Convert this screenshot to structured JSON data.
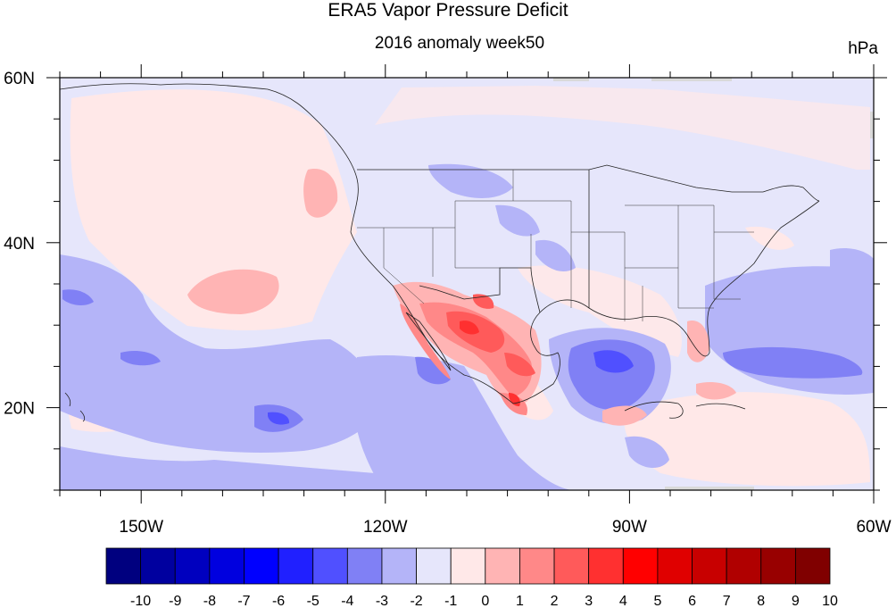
{
  "title": "ERA5 Vapor Pressure Deficit",
  "subtitle": "2016 anomaly week50",
  "units": "hPa",
  "map": {
    "lon_range": [
      -160,
      -60
    ],
    "lat_range": [
      10,
      60
    ],
    "lon_ticks": [
      {
        "lon": -150,
        "label": "150W"
      },
      {
        "lon": -120,
        "label": "120W"
      },
      {
        "lon": -90,
        "label": "90W"
      },
      {
        "lon": -60,
        "label": "60W"
      }
    ],
    "lat_ticks": [
      {
        "lat": 60,
        "label": "60N"
      },
      {
        "lat": 40,
        "label": "40N"
      },
      {
        "lat": 20,
        "label": "20N"
      }
    ],
    "background_level": "-1 to 0",
    "projection": "cylindrical equidistant"
  },
  "colorbar": {
    "labels": [
      "-10",
      "-9",
      "-8",
      "-7",
      "-6",
      "-5",
      "-4",
      "-3",
      "-2",
      "-1",
      "0",
      "1",
      "2",
      "3",
      "4",
      "5",
      "6",
      "7",
      "8",
      "9",
      "10"
    ],
    "colors": [
      "#00007f",
      "#00009f",
      "#0000bf",
      "#0000df",
      "#0000ff",
      "#2020ff",
      "#5050ff",
      "#8080f5",
      "#b4b4f8",
      "#e6e6fb",
      "#ffe8e8",
      "#ffb4b4",
      "#ff8888",
      "#ff5a5a",
      "#ff3030",
      "#ff0000",
      "#e00000",
      "#c80000",
      "#b00000",
      "#980000",
      "#800000"
    ]
  }
}
